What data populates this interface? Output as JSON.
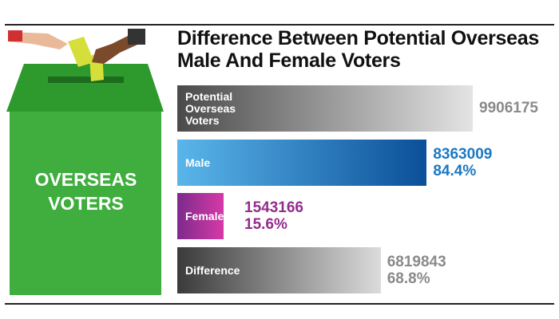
{
  "box_label": "OVERSEAS VOTERS",
  "chart_data": {
    "type": "bar",
    "orientation": "horizontal",
    "title": "Difference Between Potential Overseas Male And Female Voters",
    "categories": [
      "Potential Overseas Voters",
      "Male",
      "Female",
      "Difference"
    ],
    "values": [
      9906175,
      8363009,
      1543166,
      6819843
    ],
    "share_labels": [
      null,
      "84.4%",
      "15.6%",
      "68.8%"
    ],
    "colors": [
      [
        "#4a4a4a",
        "#e4e4e4"
      ],
      [
        "#5ab6ea",
        "#0b4f99"
      ],
      [
        "#7d2a8c",
        "#d63aa8"
      ],
      [
        "#3a3a3a",
        "#dcdcdc"
      ]
    ],
    "label_colors": [
      "#8a8a8a",
      "#1a78c2",
      "#932d8e",
      "#8a8a8a"
    ]
  }
}
